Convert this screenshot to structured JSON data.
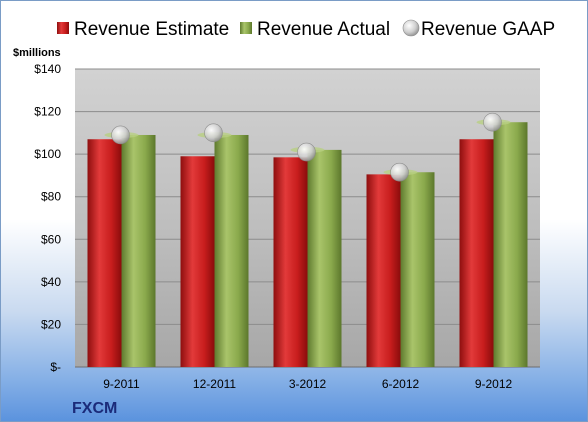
{
  "chart_data": {
    "type": "bar",
    "ylabel": "$millions",
    "ylim": [
      0,
      140
    ],
    "yticks": [
      0,
      20,
      40,
      60,
      80,
      100,
      120,
      140
    ],
    "ytick_labels": [
      "$-",
      "$20",
      "$40",
      "$60",
      "$80",
      "$100",
      "$120",
      "$140"
    ],
    "categories": [
      "9-2011",
      "12-2011",
      "3-2012",
      "6-2012",
      "9-2012"
    ],
    "series": [
      {
        "name": "Revenue Estimate",
        "kind": "bar",
        "color": "#cc1f1f",
        "values": [
          107,
          99,
          98.5,
          90.5,
          107
        ]
      },
      {
        "name": "Revenue Actual",
        "kind": "bar",
        "color": "#8fae4f",
        "values": [
          109,
          109,
          102,
          91.5,
          115
        ]
      },
      {
        "name": "Revenue GAAP",
        "kind": "marker",
        "color": "#c8c8c8",
        "values": [
          109,
          110,
          101,
          91.5,
          115
        ]
      }
    ],
    "legend_position": "top",
    "grid": true,
    "footer_label": "FXCM"
  }
}
